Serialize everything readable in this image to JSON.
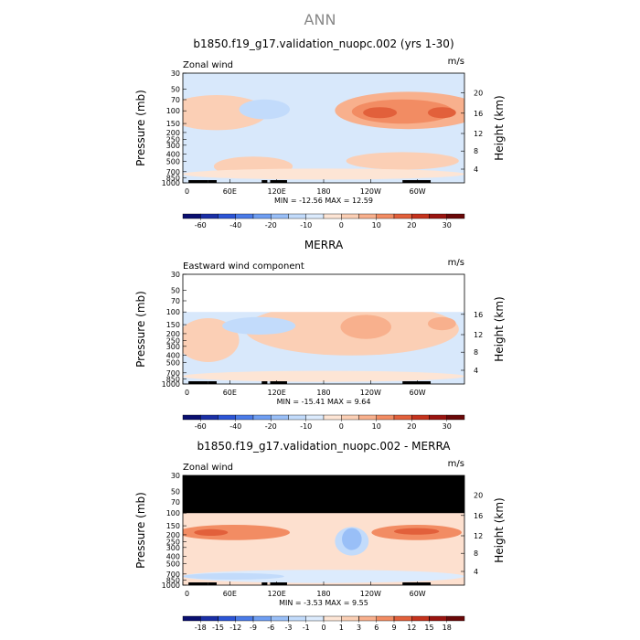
{
  "page_title": "ANN",
  "chart_data": [
    {
      "type": "heatmap",
      "title": "b1850.f19_g17.validation_nuopc.002 (yrs 1-30)",
      "variable": "Zonal wind",
      "units": "m/s",
      "ylabel_left": "Pressure (mb)",
      "ylabel_right": "Height (km)",
      "left_ticks": [
        "30",
        "50",
        "70",
        "100",
        "150",
        "200",
        "250",
        "300",
        "400",
        "500",
        "700",
        "850",
        "1000"
      ],
      "right_ticks": [
        "20",
        "16",
        "12",
        "8",
        "4"
      ],
      "x_ticks": [
        "0",
        "60E",
        "120E",
        "180",
        "120W",
        "60W"
      ],
      "stats": "MIN = -12.56   MAX =  12.59",
      "colorbar_labels": [
        "-60",
        "-40",
        "-20",
        "-10",
        "0",
        "10",
        "20",
        "30"
      ],
      "colorbar_colors": [
        "#0a0f70",
        "#1a2fa6",
        "#2c55d6",
        "#4a7be8",
        "#6f9ef2",
        "#99bff7",
        "#c2dbfb",
        "#dcebfd",
        "#fde5d5",
        "#fbcfb5",
        "#f8b08d",
        "#f28c63",
        "#e2603b",
        "#c5331d",
        "#9a1410",
        "#6a0808"
      ],
      "rect_fill": "#d8e8fb",
      "regions": [
        {
          "level": 10,
          "cx": 0.8,
          "cy": 0.34,
          "rx": 0.26,
          "ry": 0.17
        },
        {
          "level": 11,
          "cx": 0.78,
          "cy": 0.35,
          "rx": 0.18,
          "ry": 0.11
        },
        {
          "level": 12,
          "cx": 0.7,
          "cy": 0.36,
          "rx": 0.06,
          "ry": 0.05
        },
        {
          "level": 12,
          "cx": 0.92,
          "cy": 0.36,
          "rx": 0.05,
          "ry": 0.05
        },
        {
          "level": 10,
          "cx": 0.12,
          "cy": 0.37,
          "rx": 0.12,
          "ry": 0.11
        },
        {
          "level": 9,
          "cx": 0.12,
          "cy": 0.36,
          "rx": 0.18,
          "ry": 0.16
        },
        {
          "level": 9,
          "cx": 0.25,
          "cy": 0.85,
          "rx": 0.14,
          "ry": 0.09
        },
        {
          "level": 6,
          "cx": 0.29,
          "cy": 0.33,
          "rx": 0.09,
          "ry": 0.09
        },
        {
          "level": 9,
          "cx": 0.78,
          "cy": 0.8,
          "rx": 0.2,
          "ry": 0.08
        },
        {
          "level": 8,
          "cx": 0.5,
          "cy": 0.92,
          "rx": 0.5,
          "ry": 0.05
        }
      ]
    },
    {
      "type": "heatmap",
      "title": "MERRA",
      "variable": "Eastward wind component",
      "units": "m/s",
      "ylabel_left": "Pressure (mb)",
      "ylabel_right": "Height (km)",
      "left_ticks": [
        "30",
        "50",
        "70",
        "100",
        "150",
        "200",
        "250",
        "300",
        "400",
        "500",
        "700",
        "850",
        "1000"
      ],
      "right_ticks": [
        "16",
        "12",
        "8",
        "4"
      ],
      "x_ticks": [
        "0",
        "60E",
        "120E",
        "180",
        "120W",
        "60W"
      ],
      "stats": "MIN = -15.41   MAX =   9.64",
      "colorbar_labels": [
        "-60",
        "-40",
        "-20",
        "-10",
        "0",
        "10",
        "20",
        "30"
      ],
      "colorbar_colors": [
        "#0a0f70",
        "#1a2fa6",
        "#2c55d6",
        "#4a7be8",
        "#6f9ef2",
        "#99bff7",
        "#c2dbfb",
        "#dcebfd",
        "#fde5d5",
        "#fbcfb5",
        "#f8b08d",
        "#f28c63",
        "#e2603b",
        "#c5331d",
        "#9a1410",
        "#6a0808"
      ],
      "rect_fill": "#d8e8fb",
      "blank_top_pressure": 100,
      "regions": [
        {
          "level": 9,
          "cx": 0.6,
          "cy": 0.5,
          "rx": 0.38,
          "ry": 0.24
        },
        {
          "level": 10,
          "cx": 0.65,
          "cy": 0.48,
          "rx": 0.09,
          "ry": 0.11
        },
        {
          "level": 10,
          "cx": 0.92,
          "cy": 0.45,
          "rx": 0.05,
          "ry": 0.06
        },
        {
          "level": 9,
          "cx": 0.09,
          "cy": 0.6,
          "rx": 0.11,
          "ry": 0.2
        },
        {
          "level": 6,
          "cx": 0.27,
          "cy": 0.47,
          "rx": 0.13,
          "ry": 0.08
        },
        {
          "level": 8,
          "cx": 0.5,
          "cy": 0.93,
          "rx": 0.5,
          "ry": 0.05
        }
      ]
    },
    {
      "type": "heatmap",
      "title": "b1850.f19_g17.validation_nuopc.002 - MERRA",
      "variable": "Zonal wind",
      "units": "m/s",
      "ylabel_left": "Pressure (mb)",
      "ylabel_right": "Height (km)",
      "left_ticks": [
        "30",
        "50",
        "70",
        "100",
        "150",
        "200",
        "250",
        "300",
        "400",
        "500",
        "700",
        "850",
        "1000"
      ],
      "right_ticks": [
        "20",
        "16",
        "12",
        "8",
        "4"
      ],
      "x_ticks": [
        "0",
        "60E",
        "120E",
        "180",
        "120W",
        "60W"
      ],
      "stats": "MIN = -3.53   MAX =  9.55",
      "colorbar_labels": [
        "-18",
        "-15",
        "-12",
        "-9",
        "-6",
        "-3",
        "-1",
        "0",
        "1",
        "3",
        "6",
        "9",
        "12",
        "15",
        "18"
      ],
      "colorbar_colors": [
        "#0a0f70",
        "#1a2fa6",
        "#2c55d6",
        "#4a7be8",
        "#6f9ef2",
        "#99bff7",
        "#c2dbfb",
        "#dcebfd",
        "#fde5d5",
        "#fbcfb5",
        "#f8b08d",
        "#f28c63",
        "#e2603b",
        "#c5331d",
        "#9a1410",
        "#6a0808"
      ],
      "rect_fill": "#fde0cf",
      "black_top_pressure": 100,
      "regions": [
        {
          "level": 11,
          "cx": 0.18,
          "cy": 0.52,
          "rx": 0.2,
          "ry": 0.07
        },
        {
          "level": 12,
          "cx": 0.1,
          "cy": 0.52,
          "rx": 0.06,
          "ry": 0.03
        },
        {
          "level": 11,
          "cx": 0.83,
          "cy": 0.52,
          "rx": 0.16,
          "ry": 0.07
        },
        {
          "level": 12,
          "cx": 0.83,
          "cy": 0.51,
          "rx": 0.08,
          "ry": 0.03
        },
        {
          "level": 6,
          "cx": 0.6,
          "cy": 0.6,
          "rx": 0.06,
          "ry": 0.13
        },
        {
          "level": 5,
          "cx": 0.6,
          "cy": 0.58,
          "rx": 0.035,
          "ry": 0.1
        },
        {
          "level": 7,
          "cx": 0.5,
          "cy": 0.92,
          "rx": 0.5,
          "ry": 0.06
        },
        {
          "level": 6,
          "cx": 0.18,
          "cy": 0.92,
          "rx": 0.18,
          "ry": 0.03
        }
      ]
    }
  ]
}
